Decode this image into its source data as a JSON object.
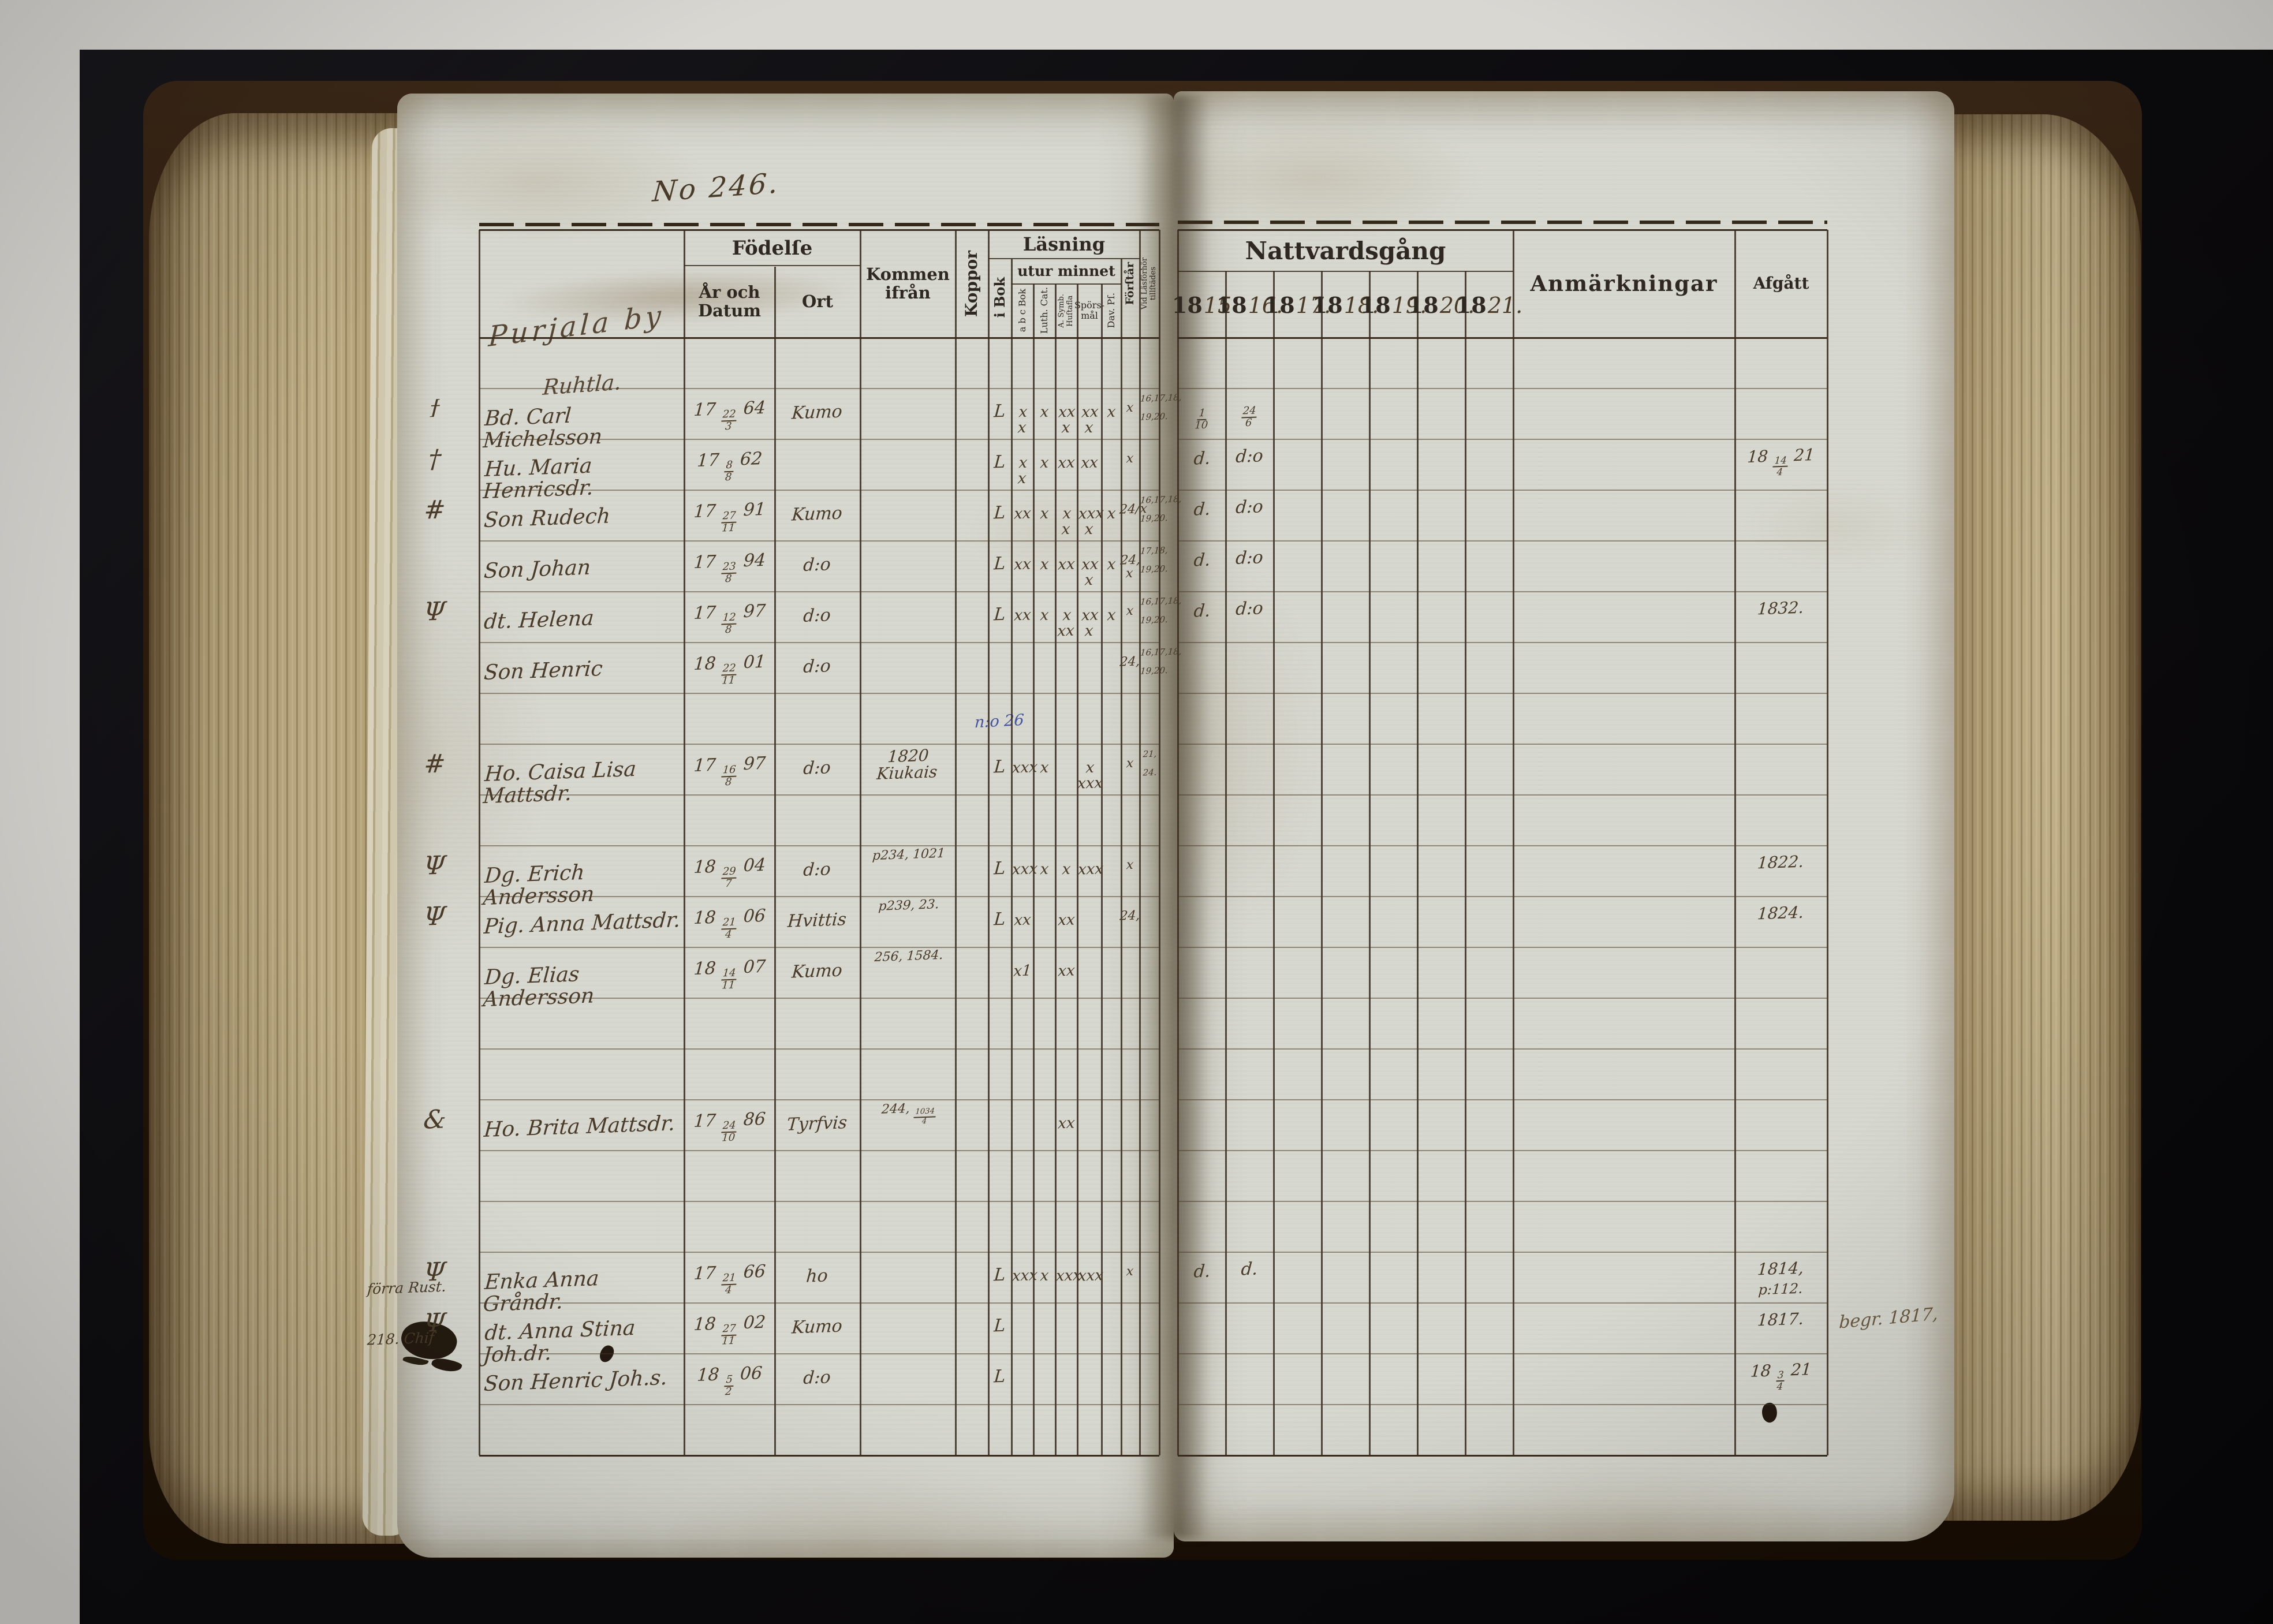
{
  "photo": {
    "subject": "Open parish communion register, two-page spread, No 246",
    "colors": {
      "surface": "#d9d7d2",
      "backdrop": "#0c0b0e",
      "paper": "#d7d8d0",
      "page_edges": "#b3a178",
      "cover": "#2a1a0c",
      "ink": "#4a3b29",
      "printed": "#2f2821",
      "blue_ink": "#44549e",
      "table_line": "#372b1d"
    }
  },
  "left_page": {
    "page_no": "No 246.",
    "village": "Purjala by",
    "hamlet": "Ruhtla.",
    "note_blue": "n:o 26",
    "headers": {
      "fodelse": "Födelſe",
      "ar_och_datum": "År och Datum",
      "ort": "Ort",
      "kommen_ifran": "Kommen ifrån",
      "koppor": "Koppor",
      "lasning": "Läsning",
      "i_bok": "i Bok",
      "utur_minnet": "utur minnet",
      "abc_bok": "a b c Bok",
      "luth_cat": "Luth. Cat.",
      "a_symb": "A. Symb.\nHuſtafla",
      "sporsmal": "Spörs-\nmål",
      "dav_ps": "Dav. Pſ.",
      "forstar": "Förſtår",
      "vid_lasforhor": "Vid Läsförhör\ntillſtädes"
    },
    "rows": [
      {},
      {
        "m": "ϯ",
        "name": "Bd. Carl Michelsson",
        "born": "17 22/3 64",
        "ort": "Kumo",
        "ibok": "L",
        "abc": "x x",
        "luth": "x",
        "symb": "xx x",
        "spors": "xx x",
        "dav": "x",
        "forstar": "x",
        "vl1": "16,17,18,",
        "vl2": "19,20.",
        "n15": "1/10",
        "n16": "24/6"
      },
      {
        "m": "†",
        "name": "Hu. Maria Henricsdr.",
        "born": "17 8/8 62",
        "ibok": "L",
        "abc": "x x",
        "luth": "x",
        "symb": "xx",
        "spors": "xx",
        "forstar": "x",
        "n15": "d.",
        "n16": "d:o",
        "afg": "18 14/4 21"
      },
      {
        "m": "#",
        "name": "Son Rudech",
        "born": "17 27/11 91",
        "ort": "Kumo",
        "ibok": "L",
        "abc": "xx",
        "luth": "x",
        "symb": "x x",
        "spors": "xxx x",
        "dav": "x",
        "forstar": "24/x",
        "vl1": "16,17,18,",
        "vl2": "19,20.",
        "n15": "d.",
        "n16": "d:o"
      },
      {
        "name": "Son Johan",
        "born": "17 23/8 94",
        "ort": "d:o",
        "ibok": "L",
        "abc": "xx",
        "luth": "x",
        "symb": "xx",
        "spors": "xx x",
        "dav": "x",
        "forstar": "24, x",
        "vl1": "17,18,",
        "vl2": "19,20.",
        "n15": "d.",
        "n16": "d:o"
      },
      {
        "m": "Ψ",
        "name": "dt. Helena",
        "born": "17 12/8 97",
        "ort": "d:o",
        "ibok": "L",
        "abc": "xx",
        "luth": "x",
        "symb": "x xx",
        "spors": "xx x",
        "dav": "x",
        "forstar": "x",
        "vl1": "16,17,18,",
        "vl2": "19,20.",
        "n15": "d.",
        "n16": "d:o",
        "afg": "1832."
      },
      {
        "name": "Son Henric",
        "born": "18 22/11 01",
        "ort": "d:o",
        "forstar": "24,",
        "vl1": "16,17,18,",
        "vl2": "19,20."
      },
      {},
      {
        "m": "#",
        "name": "Ho. Caisa Lisa Mattsdr.",
        "born": "17 16/8 97",
        "ort": "d:o",
        "kommen": "1820\nKiukais",
        "ibok": "L",
        "abc": "xxx",
        "luth": "x",
        "spors": "x xxx",
        "forstar": "x",
        "vl1": "21,",
        "vl2": "24."
      },
      {},
      {
        "m": "Ψ",
        "name": "Dg. Erich Andersson",
        "born": "18 29/7 04",
        "ort": "d:o",
        "ref": "p234, 1021",
        "ibok": "L",
        "abc": "xxx",
        "luth": "x",
        "symb": "x",
        "spors": "xxx",
        "forstar": "x",
        "afg": "1822."
      },
      {
        "m": "Ψ",
        "name": "Pig. Anna Mattsdr.",
        "born": "18 21/4 06",
        "ort": "Hvittis",
        "ref": "p239, 23.",
        "ibok": "L",
        "abc": "xx",
        "symb": "xx",
        "forstar": "24,",
        "afg": "1824."
      },
      {
        "name": "Dg. Elias Andersson",
        "born": "18 14/11 07",
        "ort": "Kumo",
        "ref": "256, 1584.",
        "abc": "x1",
        "symb": "xx"
      },
      {},
      {},
      {
        "m": "&",
        "name": "Ho. Brita Mattsdr.",
        "born": "17 24/10 86",
        "ort": "Tyrfvis",
        "ref": "244, 1034/4",
        "symb": "xx"
      },
      {},
      {},
      {
        "m": "Ψ",
        "m2": "förra Rust.",
        "name": "Enka Anna Gråndr.",
        "born": "17 21/4 66",
        "ort": "ho",
        "ibok": "L",
        "abc": "xxx",
        "luth": "x",
        "symb": "xxx",
        "spors": "xxx",
        "forstar": "x",
        "n15": "d.",
        "n16": "d.",
        "afg": "1814,",
        "afg2": "p:112."
      },
      {
        "m": "Ψ",
        "m2": "218. Chif",
        "name": "dt. Anna Stina Joh.dr.",
        "born": "18 27/11 02",
        "ort": "Kumo",
        "ibok": "L",
        "afg": "1817."
      },
      {
        "name": "Son Henric Joh.s.",
        "born": "18 5/2 06",
        "ort": "d:o",
        "ibok": "L",
        "afg": "18 3/4 21"
      },
      {}
    ]
  },
  "right_page": {
    "headers": {
      "nattvardsgang": "Nattvardsgång",
      "anmarkningar": "Anmärkningar",
      "afgatt": "Afgått"
    },
    "years": [
      {
        "p": "18",
        "h": "15"
      },
      {
        "p": "18",
        "h": "16."
      },
      {
        "p": "18",
        "h": "17."
      },
      {
        "p": "18",
        "h": "18."
      },
      {
        "p": "18",
        "h": "19."
      },
      {
        "p": "18",
        "h": "20."
      },
      {
        "p": "18",
        "h": "21."
      }
    ]
  },
  "marginalia": {
    "right_scrawl": "begr. 1817,"
  }
}
